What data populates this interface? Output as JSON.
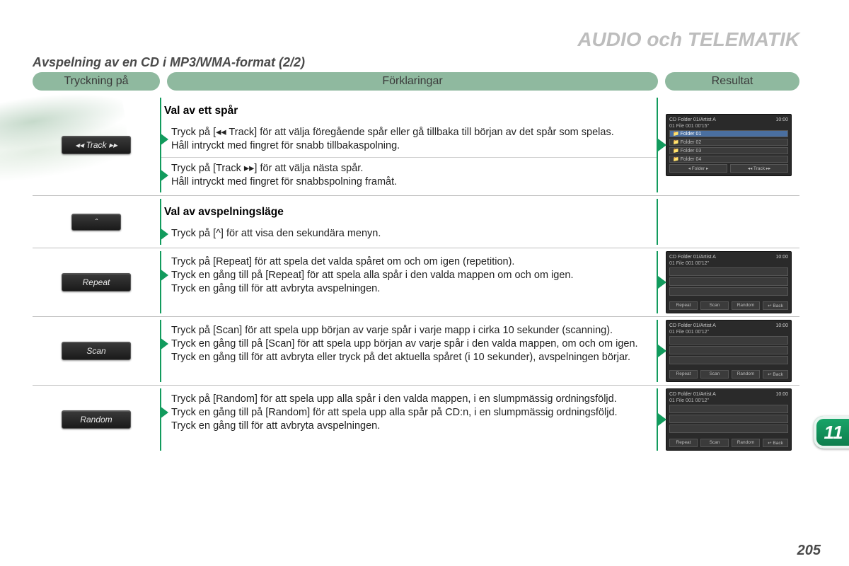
{
  "header": "AUDIO och TELEMATIK",
  "subheader": "Avspelning av en CD i MP3/WMA-format (2/2)",
  "columns": {
    "press": "Tryckning på",
    "explain": "Förklaringar",
    "result": "Resultat"
  },
  "chapter_tab": "11",
  "page_number": "205",
  "buttons": {
    "track": "◂◂ Track ▸▸",
    "up": "ˆ",
    "repeat": "Repeat",
    "scan": "Scan",
    "random": "Random"
  },
  "sections": {
    "track": {
      "title": "Val av ett spår",
      "para1a": "Tryck på [◂◂ Track] för att välja föregående spår eller gå tillbaka till början av det spår som spelas.",
      "para1b": "Håll intryckt med fingret för snabb tillbakaspolning.",
      "para2a": "Tryck på [Track ▸▸] för att välja nästa spår.",
      "para2b": "Håll intryckt med fingret för snabbspolning framåt."
    },
    "mode": {
      "title": "Val av avspelningsläge",
      "para": "Tryck på [^] för att visa den sekundära menyn."
    },
    "repeat": {
      "p1": "Tryck på [Repeat] för att spela det valda spåret om och om igen (repetition).",
      "p2": "Tryck en gång till på [Repeat] för att spela alla spår i den valda mappen om och om igen.",
      "p3": "Tryck en gång till för att avbryta avspelningen."
    },
    "scan": {
      "p1": "Tryck på [Scan] för att spela upp början av varje spår i varje mapp i cirka 10 sekunder (scanning).",
      "p2": "Tryck en gång till på [Scan] för att spela upp början av varje spår i den valda mappen, om och om igen.",
      "p3": "Tryck en gång till för att avbryta eller tryck på det aktuella spåret (i 10 sekunder), avspelningen börjar."
    },
    "random": {
      "p1": "Tryck på [Random] för att spela upp alla spår i den valda mappen, i en slumpmässig ordningsföljd.",
      "p2": "Tryck en gång till på [Random] för att spela upp alla spår på CD:n, i en slumpmässig ordningsföljd.",
      "p3": "Tryck en gång till för att avbryta avspelningen."
    }
  },
  "screens": {
    "folder": {
      "top_left": "CD   Folder 01/Artist A",
      "top_right": "10:00",
      "sub": "01 File 001                00'15\"",
      "rows": [
        "📁  Folder 01",
        "📁  Folder 02",
        "📁  Folder 03",
        "📁  Folder 04"
      ],
      "bottom": [
        "◂ Folder ▸",
        "◂◂ Track ▸▸"
      ]
    },
    "modes": {
      "top_left": "CD   Folder 01/Artist A",
      "top_right": "10:00",
      "sub": "01 File 001                00'12\"",
      "bottom": [
        "Repeat",
        "Scan",
        "Random"
      ],
      "back": "↩ Back"
    }
  }
}
